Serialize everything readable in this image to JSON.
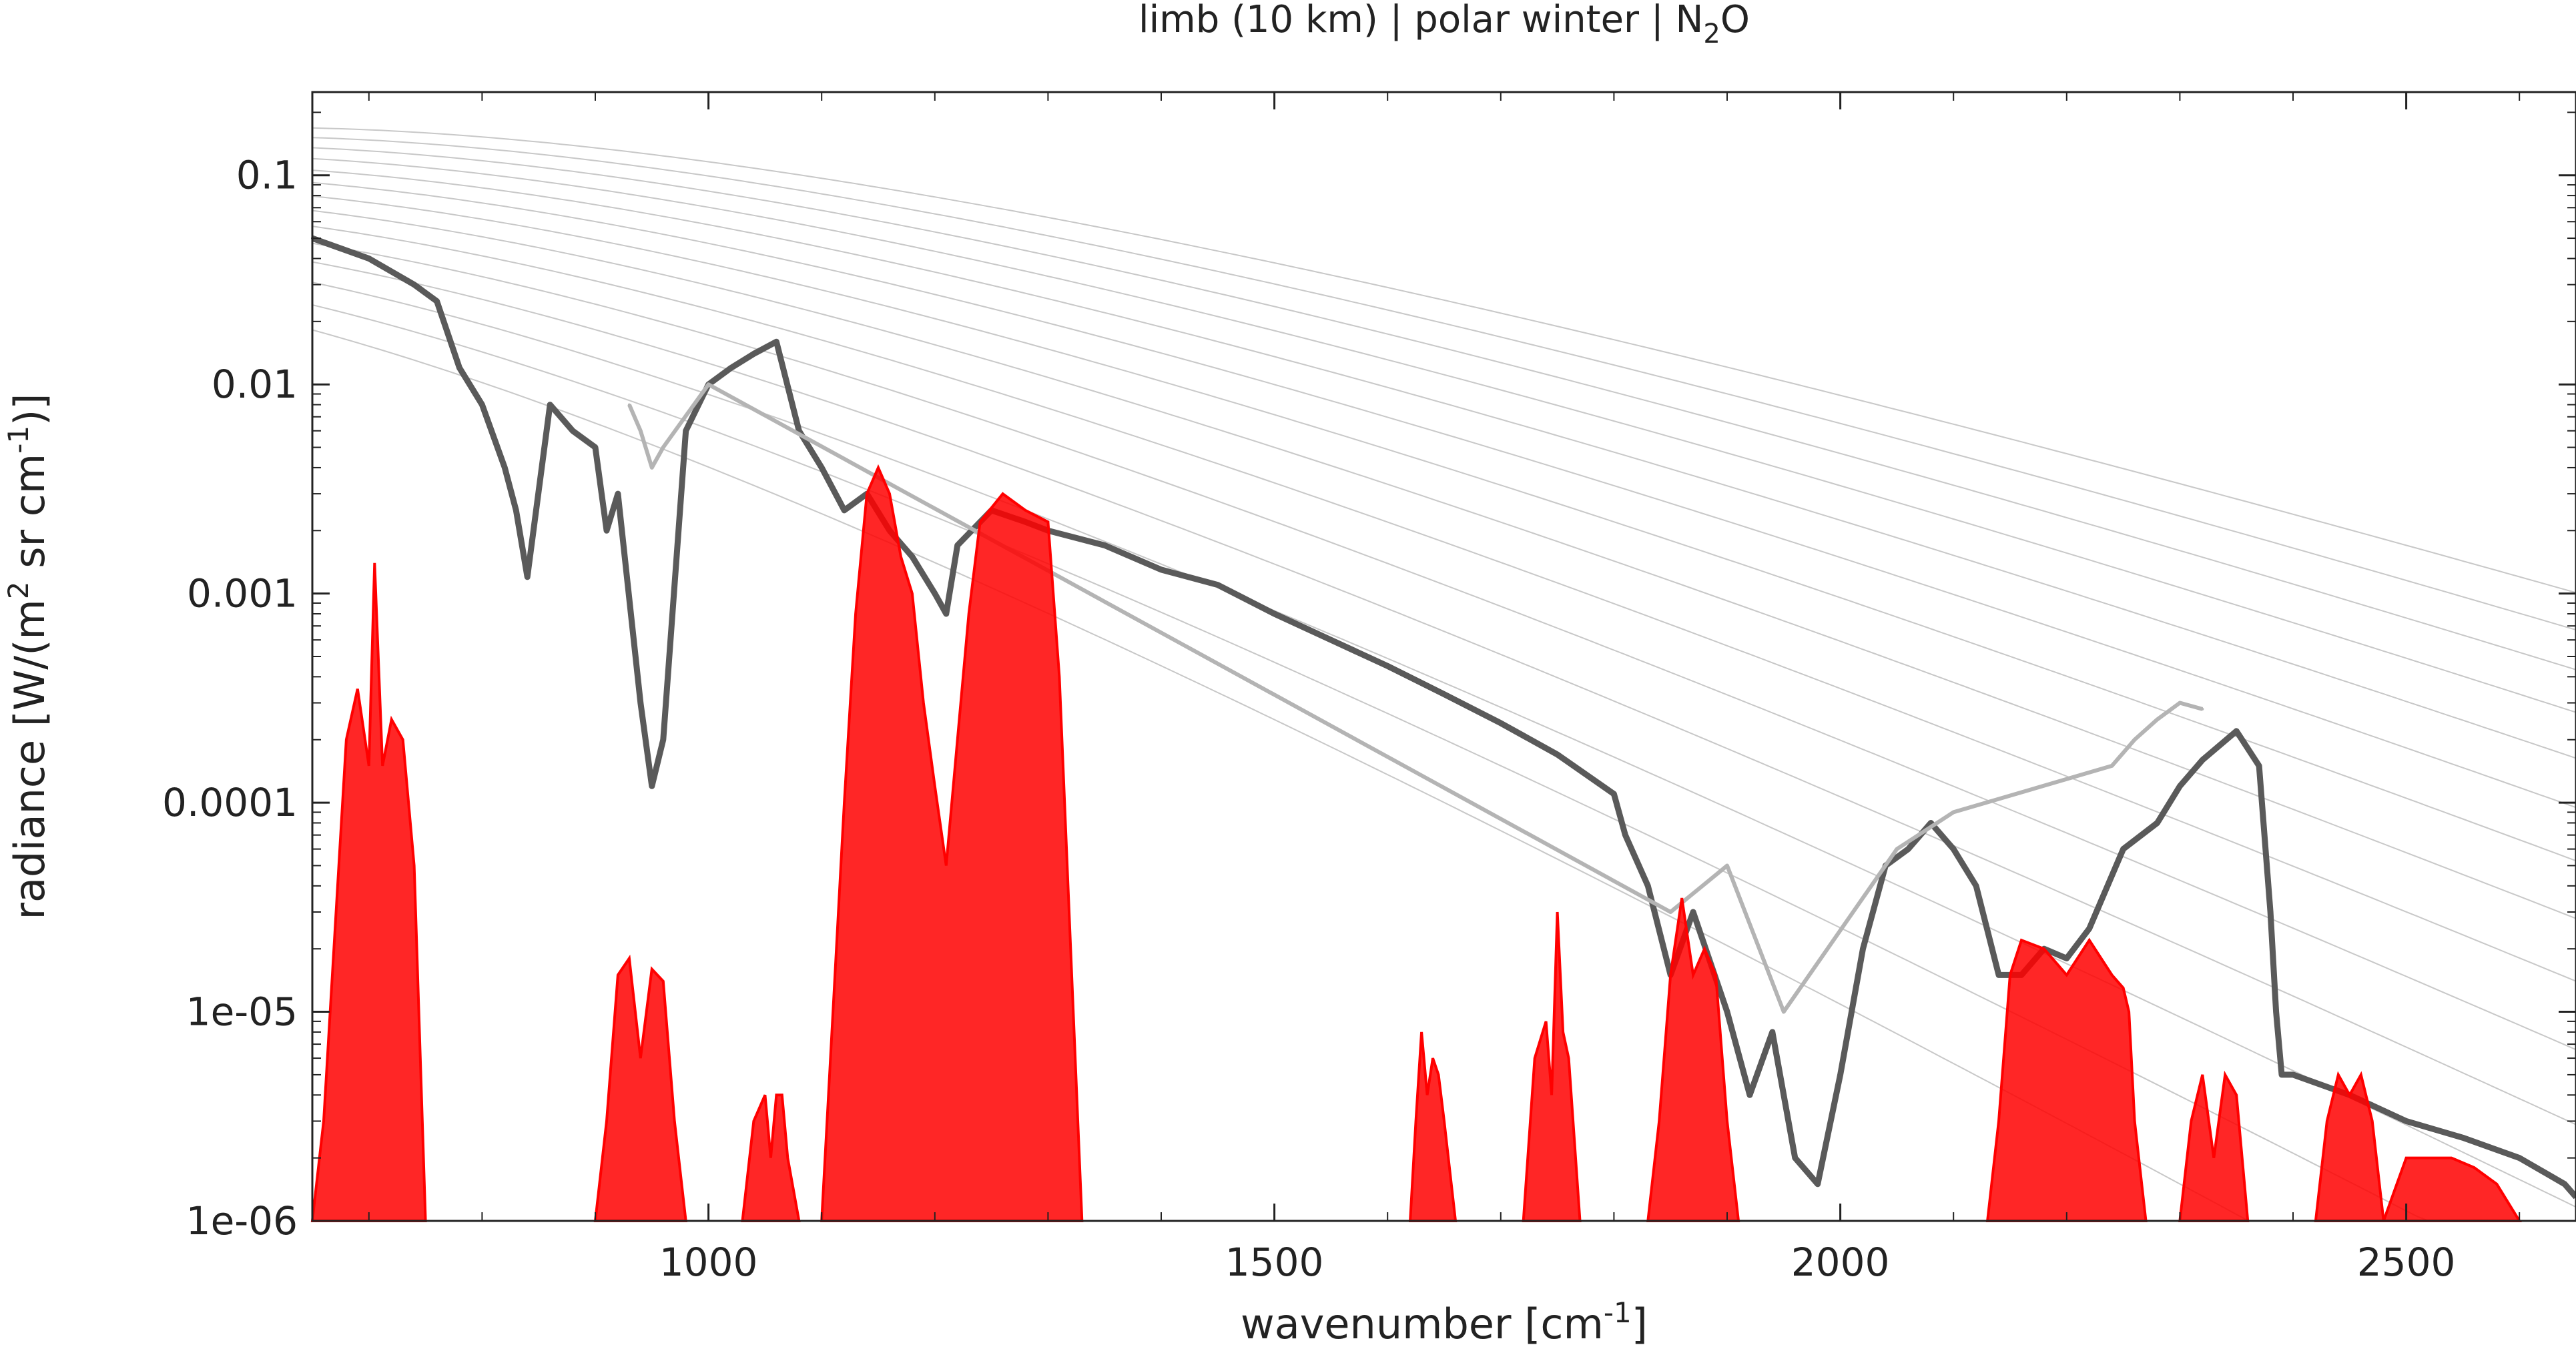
{
  "chart_data": {
    "type": "line",
    "title": {
      "before": "limb (10 km) | polar winter | N",
      "sub": "2",
      "after": "O"
    },
    "xlabel": {
      "before": "wavenumber [cm",
      "sup": "-1",
      "after": "]"
    },
    "ylabel": {
      "part1": "radiance [W/(m",
      "sup1": "2",
      "part2": " sr cm",
      "sup2": "-1",
      "part3": ")]"
    },
    "xlim": [
      650,
      2650
    ],
    "ylim": [
      1e-06,
      0.25
    ],
    "yscale": "log",
    "grid": false,
    "legend": "none",
    "x_ticks": [
      {
        "value": 1000,
        "label": "1000"
      },
      {
        "value": 1500,
        "label": "1500"
      },
      {
        "value": 2000,
        "label": "2000"
      },
      {
        "value": 2500,
        "label": "2500"
      }
    ],
    "y_ticks": [
      {
        "value": 0.1,
        "label": "0.1"
      },
      {
        "value": 0.01,
        "label": "0.01"
      },
      {
        "value": 0.001,
        "label": "0.001"
      },
      {
        "value": 0.0001,
        "label": "0.0001"
      },
      {
        "value": 1e-05,
        "label": "1e-05"
      },
      {
        "value": 1e-06,
        "label": "1e-06"
      }
    ],
    "colors": {
      "total": "#5a5a5a",
      "total_light": "#b4b4b4",
      "gas": "#ff0000",
      "planck": "#c8c8c8",
      "axis": "#222222"
    },
    "planck_temperatures_K": [
      180,
      190,
      200,
      210,
      220,
      230,
      240,
      250,
      260,
      270,
      280,
      290,
      300,
      310
    ],
    "series": [
      {
        "role": "total",
        "x": [
          650,
          700,
          740,
          760,
          780,
          800,
          820,
          830,
          840,
          860,
          880,
          900,
          910,
          920,
          940,
          950,
          960,
          980,
          1000,
          1020,
          1040,
          1060,
          1080,
          1100,
          1120,
          1140,
          1160,
          1180,
          1200,
          1210,
          1220,
          1250,
          1280,
          1300,
          1350,
          1400,
          1450,
          1500,
          1550,
          1600,
          1650,
          1700,
          1750,
          1800,
          1810,
          1830,
          1850,
          1870,
          1900,
          1920,
          1940,
          1960,
          1980,
          2000,
          2020,
          2040,
          2060,
          2080,
          2100,
          2120,
          2140,
          2160,
          2180,
          2200,
          2220,
          2250,
          2280,
          2300,
          2320,
          2350,
          2370,
          2380,
          2385,
          2390,
          2400,
          2450,
          2500,
          2550,
          2600,
          2640,
          2650
        ],
        "y": [
          0.05,
          0.04,
          0.03,
          0.025,
          0.012,
          0.008,
          0.004,
          0.0025,
          0.0012,
          0.008,
          0.006,
          0.005,
          0.002,
          0.003,
          0.0003,
          0.00012,
          0.0002,
          0.006,
          0.01,
          0.012,
          0.014,
          0.016,
          0.006,
          0.004,
          0.0025,
          0.003,
          0.002,
          0.0015,
          0.001,
          0.0008,
          0.0017,
          0.0025,
          0.0022,
          0.002,
          0.0017,
          0.0013,
          0.0011,
          0.0008,
          0.0006,
          0.00045,
          0.00033,
          0.00024,
          0.00017,
          0.00011,
          7e-05,
          4e-05,
          1.5e-05,
          3e-05,
          1e-05,
          4e-06,
          8e-06,
          2e-06,
          1.5e-06,
          5e-06,
          2e-05,
          5e-05,
          6e-05,
          8e-05,
          6e-05,
          4e-05,
          1.5e-05,
          1.5e-05,
          2e-05,
          1.8e-05,
          2.5e-05,
          6e-05,
          8e-05,
          0.00012,
          0.00016,
          0.00022,
          0.00015,
          3e-05,
          1e-05,
          5e-06,
          5e-06,
          4e-06,
          3e-06,
          2.5e-06,
          2e-06,
          1.5e-06,
          1.3e-06
        ]
      },
      {
        "role": "light",
        "x": [
          930,
          940,
          950,
          960,
          1000,
          1850,
          1900,
          1950,
          2050,
          2100,
          2240,
          2260,
          2280,
          2300,
          2320
        ],
        "y": [
          0.008,
          0.006,
          0.004,
          0.005,
          0.01,
          3e-05,
          5e-05,
          1e-05,
          6e-05,
          9e-05,
          0.00015,
          0.0002,
          0.00025,
          0.0003,
          0.00028
        ]
      },
      {
        "role": "gas",
        "bands": [
          {
            "x": [
              650,
              660,
              680,
              690,
              700,
              705,
              712,
              720,
              730,
              740,
              750
            ],
            "y": [
              1e-06,
              3e-06,
              0.0002,
              0.00035,
              0.00015,
              0.0014,
              0.00015,
              0.00025,
              0.0002,
              5e-05,
              1e-06
            ]
          },
          {
            "x": [
              900,
              910,
              920,
              930,
              940,
              950,
              960,
              970,
              980
            ],
            "y": [
              1e-06,
              3e-06,
              1.5e-05,
              1.8e-05,
              6e-06,
              1.6e-05,
              1.4e-05,
              3e-06,
              1e-06
            ]
          },
          {
            "x": [
              1030,
              1040,
              1050,
              1055,
              1060,
              1065,
              1070,
              1080
            ],
            "y": [
              1e-06,
              3e-06,
              4e-06,
              2e-06,
              4e-06,
              4e-06,
              2e-06,
              1e-06
            ]
          },
          {
            "x": [
              1100,
              1110,
              1120,
              1130,
              1140,
              1150,
              1160,
              1170,
              1180,
              1190,
              1200,
              1210,
              1220,
              1230,
              1240,
              1260,
              1280,
              1300,
              1310,
              1320,
              1330
            ],
            "y": [
              1e-06,
              1e-05,
              0.0001,
              0.0008,
              0.003,
              0.004,
              0.003,
              0.0015,
              0.001,
              0.0003,
              0.00012,
              5e-05,
              0.0002,
              0.0008,
              0.0022,
              0.003,
              0.0025,
              0.0022,
              0.0004,
              2e-05,
              1e-06
            ]
          },
          {
            "x": [
              1620,
              1625,
              1630,
              1635,
              1640,
              1645,
              1650,
              1660
            ],
            "y": [
              1e-06,
              3e-06,
              8e-06,
              4e-06,
              6e-06,
              5e-06,
              3e-06,
              1e-06
            ]
          },
          {
            "x": [
              1720,
              1730,
              1740,
              1745,
              1750,
              1755,
              1760,
              1770
            ],
            "y": [
              1e-06,
              6e-06,
              9e-06,
              4e-06,
              3e-05,
              8e-06,
              6e-06,
              1e-06
            ]
          },
          {
            "x": [
              1830,
              1840,
              1850,
              1860,
              1870,
              1880,
              1890,
              1900,
              1910
            ],
            "y": [
              1e-06,
              3e-06,
              1.5e-05,
              3.5e-05,
              1.5e-05,
              2e-05,
              1.5e-05,
              3e-06,
              1e-06
            ]
          },
          {
            "x": [
              2130,
              2140,
              2150,
              2160,
              2180,
              2200,
              2220,
              2240,
              2250,
              2255,
              2260,
              2270
            ],
            "y": [
              1e-06,
              3e-06,
              1.5e-05,
              2.2e-05,
              2e-05,
              1.5e-05,
              2.2e-05,
              1.5e-05,
              1.3e-05,
              1e-05,
              3e-06,
              1e-06
            ]
          },
          {
            "x": [
              2300,
              2310,
              2320,
              2330,
              2340,
              2350,
              2360
            ],
            "y": [
              1e-06,
              3e-06,
              5e-06,
              2e-06,
              5e-06,
              4e-06,
              1e-06
            ]
          },
          {
            "x": [
              2420,
              2430,
              2440,
              2450,
              2460,
              2470,
              2480
            ],
            "y": [
              1e-06,
              3e-06,
              5e-06,
              4e-06,
              5e-06,
              3e-06,
              1e-06
            ]
          },
          {
            "x": [
              2480,
              2500,
              2520,
              2540,
              2560,
              2580,
              2600
            ],
            "y": [
              1e-06,
              2e-06,
              2e-06,
              2e-06,
              1.8e-06,
              1.5e-06,
              1e-06
            ]
          }
        ]
      }
    ]
  }
}
